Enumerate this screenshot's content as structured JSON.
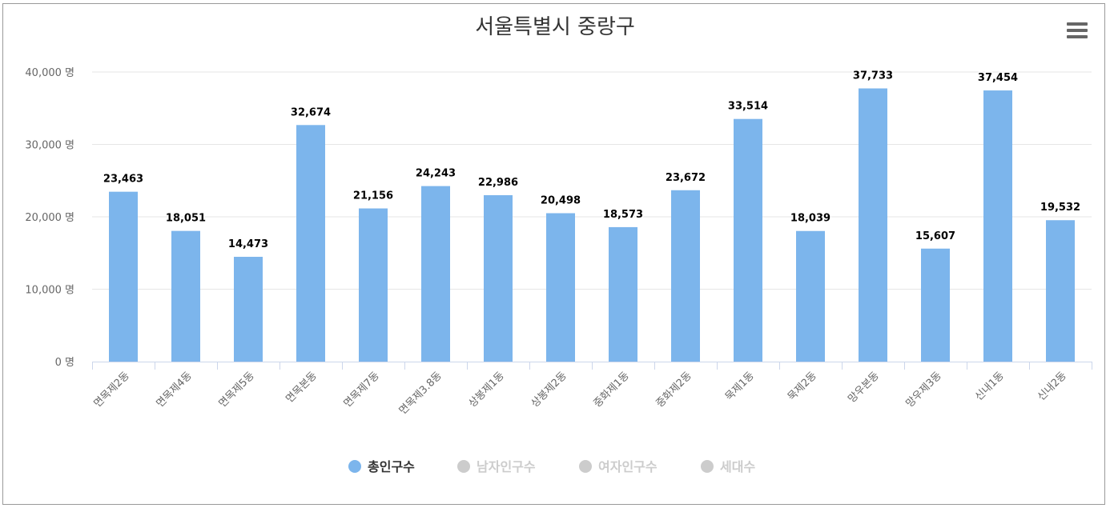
{
  "chart_data": {
    "type": "bar",
    "title": "서울특별시 중랑구",
    "categories": [
      "면목제2동",
      "면목제4동",
      "면목제5동",
      "면목본동",
      "면목제7동",
      "면목제3.8동",
      "상봉제1동",
      "상봉제2동",
      "중화제1동",
      "중화제2동",
      "묵제1동",
      "묵제2동",
      "망우본동",
      "망우제3동",
      "신내1동",
      "신내2동"
    ],
    "series": [
      {
        "name": "총인구수",
        "color": "#7cb5ec",
        "visible": true,
        "values": [
          23463,
          18051,
          14473,
          32674,
          21156,
          24243,
          22986,
          20498,
          18573,
          23672,
          33514,
          18039,
          37733,
          15607,
          37454,
          19532
        ],
        "labels": [
          "23,463",
          "18,051",
          "14,473",
          "32,674",
          "21,156",
          "24,243",
          "22,986",
          "20,498",
          "18,573",
          "23,672",
          "33,514",
          "18,039",
          "37,733",
          "15,607",
          "37,454",
          "19,532"
        ]
      },
      {
        "name": "남자인구수",
        "color": "#cccccc",
        "visible": false
      },
      {
        "name": "여자인구수",
        "color": "#cccccc",
        "visible": false
      },
      {
        "name": "세대수",
        "color": "#cccccc",
        "visible": false
      }
    ],
    "ylim": [
      0,
      40000
    ],
    "yticks": [
      0,
      10000,
      20000,
      30000,
      40000
    ],
    "ytick_labels": [
      "0 명",
      "10,000 명",
      "20,000 명",
      "30,000 명",
      "40,000 명"
    ],
    "xlabel": "",
    "ylabel": "",
    "grid": true,
    "legend_position": "bottom-center"
  },
  "colors": {
    "bar": "#7cb5ec",
    "grid": "#e6e6e6",
    "axis_line": "#ccd6eb",
    "title": "#333333",
    "axis_text": "#666666",
    "legend_active": "#333333",
    "legend_inactive": "#cccccc"
  },
  "toolbar": {
    "menu_icon": "hamburger-menu-icon"
  }
}
